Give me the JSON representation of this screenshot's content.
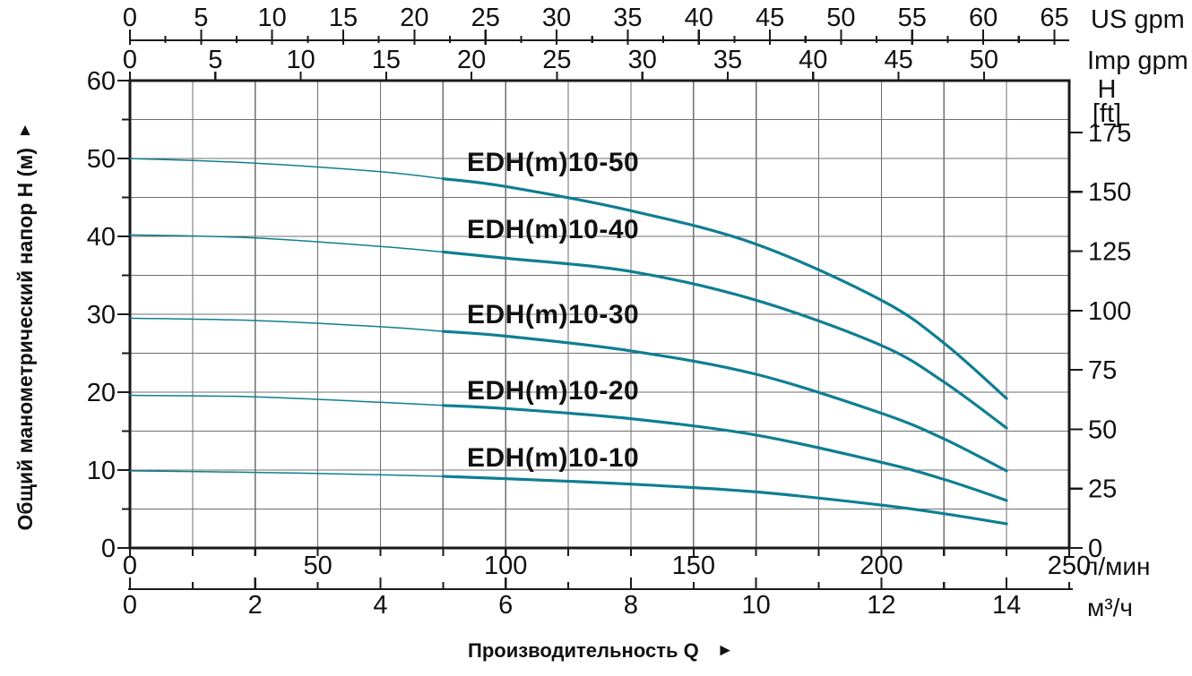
{
  "chart_data": {
    "type": "line",
    "title": "Производительность Q",
    "ylabel": "Общий манометрический напор H (м)",
    "colors": {
      "curve": "#0f7e93",
      "grid": "#6f6f6f",
      "axis": "#1a1a1a",
      "text": "#111111"
    },
    "axes": {
      "us_gpm": {
        "unit": "US gpm",
        "major_ticks": [
          0,
          5,
          10,
          15,
          20,
          25,
          30,
          35,
          40,
          45,
          50,
          55,
          60,
          65
        ],
        "minor_step": 2.5
      },
      "imp_gpm": {
        "unit": "Imp gpm",
        "major_ticks": [
          0,
          5,
          10,
          15,
          20,
          25,
          30,
          35,
          40,
          45,
          50
        ]
      },
      "head_m": {
        "major_ticks": [
          0,
          10,
          20,
          30,
          40,
          50,
          60
        ],
        "minor_step": 5,
        "max": 60
      },
      "head_ft": {
        "unit_lines": [
          "H",
          "[ft]"
        ],
        "major_ticks": [
          0,
          25,
          50,
          75,
          100,
          125,
          150,
          175
        ]
      },
      "flow_lmin": {
        "unit": "л/мин",
        "major_ticks": [
          0,
          50,
          100,
          150,
          200,
          250
        ],
        "max": 250
      },
      "flow_m3h": {
        "unit": "м³/ч",
        "major_ticks": [
          0,
          2,
          4,
          6,
          8,
          10,
          12,
          14
        ],
        "minor_step": 1,
        "axis_max": 15
      }
    },
    "grid": {
      "vertical_every_m3h": 1,
      "horizontal_every_m": 5
    },
    "split_q_thin_to_thick": 5,
    "series": [
      {
        "name": "EDH(m)10-50",
        "points": [
          [
            0,
            50
          ],
          [
            2,
            49.4
          ],
          [
            4,
            48.3
          ],
          [
            5,
            47.4
          ],
          [
            6,
            46.4
          ],
          [
            8,
            43.3
          ],
          [
            10,
            39.0
          ],
          [
            12,
            31.8
          ],
          [
            13,
            26.3
          ],
          [
            14,
            19.2
          ]
        ]
      },
      {
        "name": "EDH(m)10-40",
        "points": [
          [
            0,
            40.2
          ],
          [
            2,
            39.8
          ],
          [
            4,
            38.7
          ],
          [
            5,
            38.0
          ],
          [
            6,
            37.2
          ],
          [
            8,
            35.5
          ],
          [
            10,
            31.8
          ],
          [
            12,
            26.0
          ],
          [
            13,
            21.3
          ],
          [
            14,
            15.4
          ]
        ]
      },
      {
        "name": "EDH(m)10-30",
        "points": [
          [
            0,
            29.5
          ],
          [
            2,
            29.2
          ],
          [
            4,
            28.4
          ],
          [
            5,
            27.8
          ],
          [
            6,
            27.2
          ],
          [
            8,
            25.3
          ],
          [
            10,
            22.3
          ],
          [
            12,
            17.3
          ],
          [
            13,
            14.0
          ],
          [
            14,
            9.9
          ]
        ]
      },
      {
        "name": "EDH(m)10-20",
        "points": [
          [
            0,
            19.6
          ],
          [
            2,
            19.4
          ],
          [
            4,
            18.7
          ],
          [
            5,
            18.3
          ],
          [
            6,
            17.9
          ],
          [
            8,
            16.6
          ],
          [
            10,
            14.5
          ],
          [
            12,
            11.0
          ],
          [
            13,
            8.8
          ],
          [
            14,
            6.1
          ]
        ]
      },
      {
        "name": "EDH(m)10-10",
        "points": [
          [
            0,
            9.9
          ],
          [
            2,
            9.7
          ],
          [
            4,
            9.4
          ],
          [
            5,
            9.2
          ],
          [
            6,
            8.9
          ],
          [
            8,
            8.2
          ],
          [
            10,
            7.2
          ],
          [
            12,
            5.5
          ],
          [
            13,
            4.4
          ],
          [
            14,
            3.1
          ]
        ]
      }
    ]
  },
  "labels": {
    "up_arrow": "▲",
    "right_arrow": "►"
  }
}
